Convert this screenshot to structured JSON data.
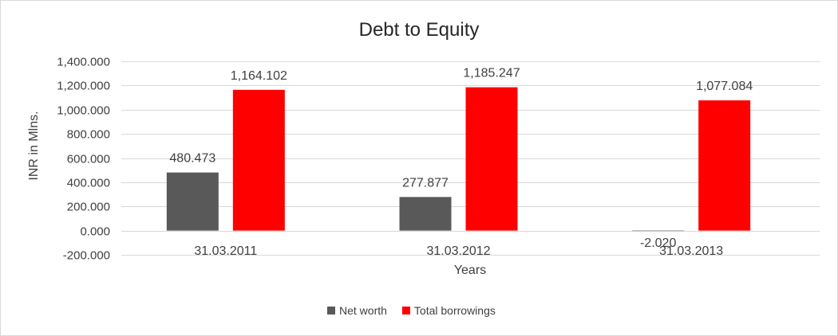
{
  "chart_data": {
    "type": "bar",
    "title": "Debt to Equity",
    "xlabel": "Years",
    "ylabel": "INR in Mlns.",
    "categories": [
      "31.03.2011",
      "31.03.2012",
      "31.03.2013"
    ],
    "series": [
      {
        "name": "Net worth",
        "color": "#595959",
        "values": [
          480.473,
          277.877,
          -2.02
        ],
        "labels": [
          "480.473",
          "277.877",
          "-2.020"
        ]
      },
      {
        "name": "Total borrowings",
        "color": "#ff0000",
        "values": [
          1164.102,
          1185.247,
          1077.084
        ],
        "labels": [
          "1,164.102",
          "1,185.247",
          "1,077.084"
        ]
      }
    ],
    "ylim": [
      -200,
      1400
    ],
    "yticks": [
      -200,
      0,
      200,
      400,
      600,
      800,
      1000,
      1200,
      1400
    ],
    "ytick_labels": [
      "-200.000",
      "0.000",
      "200.000",
      "400.000",
      "600.000",
      "800.000",
      "1,000.000",
      "1,200.000",
      "1,400.000"
    ],
    "grid": true,
    "legend": "bottom"
  }
}
